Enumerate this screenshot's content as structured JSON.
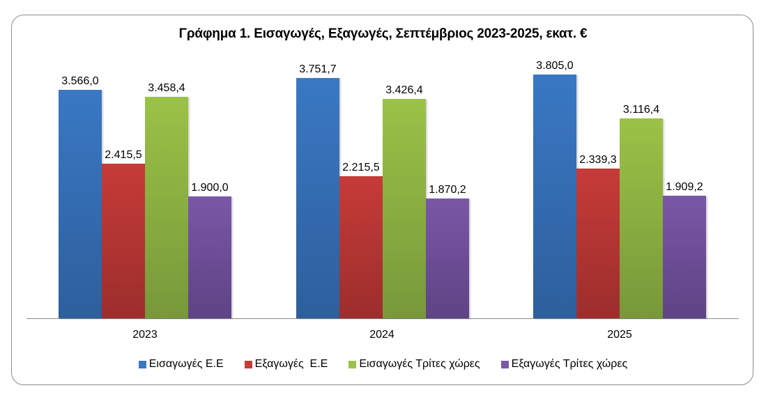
{
  "chart_data": {
    "type": "bar",
    "title": "Γράφημα 1. Εισαγωγές, Εξαγωγές, Σεπτέμβριος 2023-2025, εκατ. €",
    "xlabel": "",
    "ylabel": "",
    "categories": [
      "2023",
      "2024",
      "2025"
    ],
    "series": [
      {
        "name": "Εισαγωγές Ε.Ε",
        "color": "#3a78c4",
        "values": [
          3566.0,
          3751.7,
          3805.0
        ],
        "labels": [
          "3.566,0",
          "3.751,7",
          "3.805,0"
        ]
      },
      {
        "name": "Εξαγωγές  Ε.Ε",
        "color": "#c63b38",
        "values": [
          2415.5,
          2215.5,
          2339.3
        ],
        "labels": [
          "2.415,5",
          "2.215,5",
          "2.339,3"
        ]
      },
      {
        "name": "Εισαγωγές Τρίτες χώρες",
        "color": "#9bc247",
        "values": [
          3458.4,
          3426.4,
          3116.4
        ],
        "labels": [
          "3.458,4",
          "3.426,4",
          "3.116,4"
        ]
      },
      {
        "name": "Εξαγωγές Τρίτες χώρες",
        "color": "#7a57a6",
        "values": [
          1900.0,
          1870.2,
          1909.2
        ],
        "labels": [
          "1.900,0",
          "1.870,2",
          "1.909,2"
        ]
      }
    ],
    "ylim": [
      0,
      4000
    ],
    "grid": false,
    "legend_position": "bottom",
    "data_labels": true
  }
}
